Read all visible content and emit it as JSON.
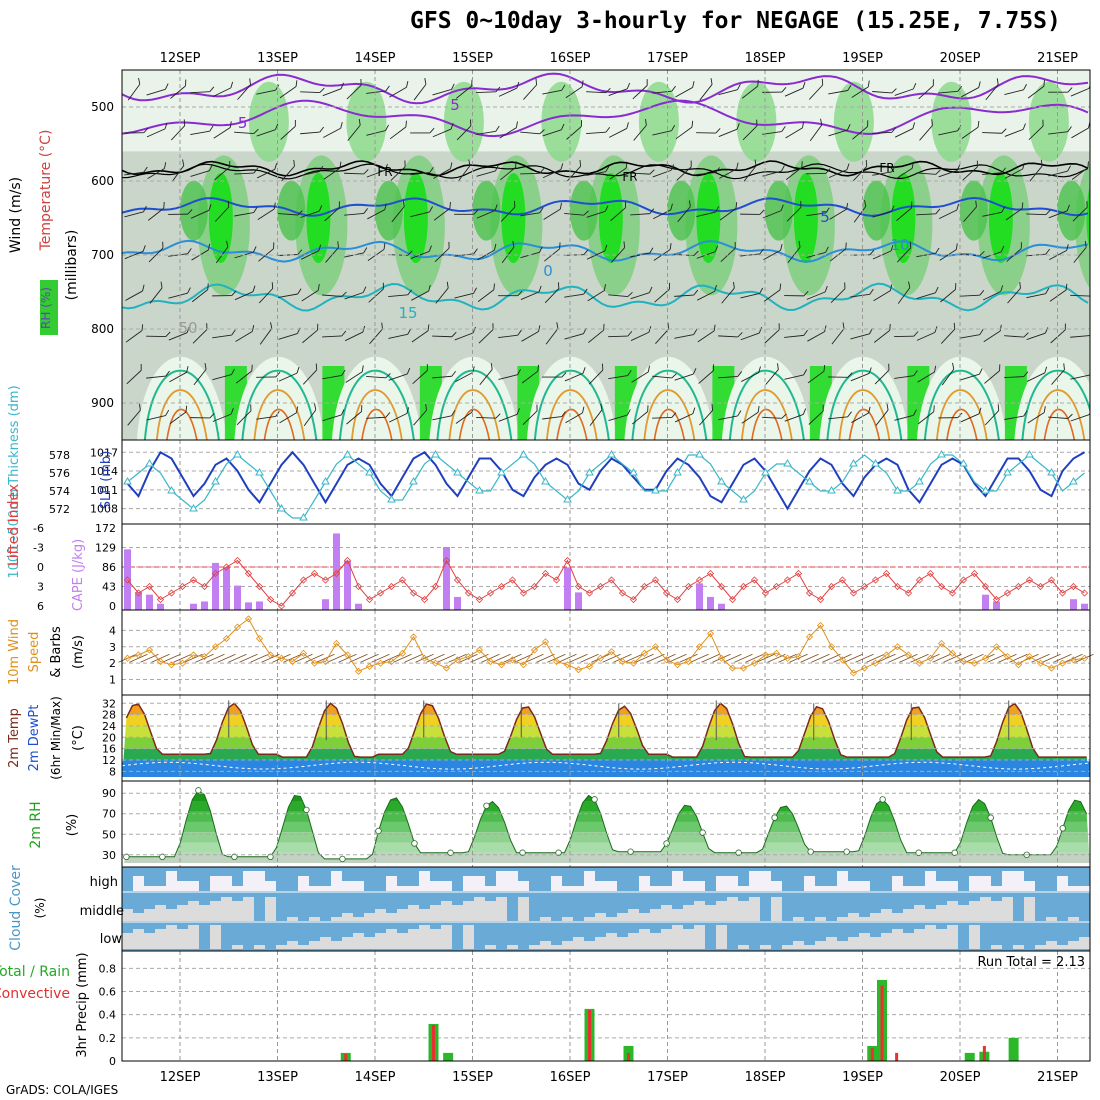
{
  "page": {
    "title": "GFS 0~10day 3-hourly for NEGAGE (15.25E, 7.75S)",
    "credit": "GrADS: COLA/IGES"
  },
  "chart_data": [
    {
      "id": "profile",
      "type": "contour",
      "title": "Wind (m/s), Temperature (°C), RH (%)",
      "ylabel": "(millibars)",
      "ylabel_parts": [
        "Wind (m/s)",
        "Temperature (°C)",
        "RH (%)"
      ],
      "yticks": [
        500,
        600,
        700,
        800,
        900
      ],
      "ylim": [
        450,
        950
      ],
      "date_labels": [
        "12SEP",
        "13SEP",
        "14SEP",
        "15SEP",
        "16SEP",
        "17SEP",
        "18SEP",
        "19SEP",
        "20SEP",
        "21SEP"
      ],
      "temp_contours": [
        {
          "label": "-5",
          "level_mb": 510,
          "color": "#8a2bd2"
        },
        {
          "label": "5",
          "level_mb": 490,
          "color": "#8a2bd2"
        },
        {
          "label": "FR",
          "level_mb": 585,
          "color": "#000000"
        },
        {
          "label": "5",
          "level_mb": 635,
          "color": "#1f4fd0"
        },
        {
          "label": "10",
          "level_mb": 695,
          "color": "#2a8ed8"
        },
        {
          "label": "0",
          "level_mb": 740,
          "color": "#2a8ed8"
        },
        {
          "label": "15",
          "level_mb": 755,
          "color": "#21b2c0"
        },
        {
          "label": "50",
          "level_mb": 800,
          "color": "#9a9a9a"
        }
      ],
      "rh_legend": "RH (%)"
    },
    {
      "id": "slp",
      "type": "line",
      "ylabel_left": "1000~500mb Thickness (dm)",
      "ylabel_right": "SLP (mb)",
      "yticks_left": [
        572,
        574,
        576,
        578
      ],
      "yticks_right": [
        1008,
        1011,
        1014,
        1017
      ],
      "series": [
        {
          "name": "SLP (mb)",
          "color": "#1f3fbf",
          "values": [
            1012,
            1010,
            1014,
            1017,
            1016,
            1013,
            1010,
            1012,
            1015,
            1016,
            1014,
            1011,
            1009,
            1012,
            1015,
            1017,
            1015,
            1012,
            1009,
            1012,
            1015,
            1016,
            1015,
            1012,
            1010,
            1013,
            1016,
            1017,
            1015,
            1012,
            1010,
            1013,
            1016,
            1016,
            1014,
            1011,
            1010,
            1013,
            1015,
            1016,
            1015,
            1012,
            1011,
            1014,
            1016,
            1015,
            1013,
            1011,
            1011,
            1014,
            1016,
            1015,
            1013,
            1010,
            1009,
            1012,
            1015,
            1016,
            1014,
            1011,
            1008,
            1011,
            1014,
            1016,
            1015,
            1012,
            1010,
            1013,
            1015,
            1016,
            1015,
            1011,
            1009,
            1012,
            1015,
            1016,
            1015,
            1012,
            1010,
            1013,
            1016,
            1016,
            1014,
            1011,
            1010,
            1014,
            1016,
            1017
          ]
        },
        {
          "name": "Thickness (dm)",
          "color": "#3ab7c8",
          "marker": "triangle",
          "values": [
            575,
            576,
            577,
            576,
            574,
            573,
            572,
            573,
            575,
            577,
            578,
            577,
            576,
            574,
            572,
            571,
            571,
            573,
            575,
            577,
            578,
            577,
            576,
            574,
            573,
            573,
            575,
            577,
            578,
            577,
            576,
            575,
            574,
            574,
            576,
            577,
            578,
            577,
            575,
            574,
            573,
            574,
            576,
            577,
            578,
            577,
            576,
            574,
            574,
            574,
            576,
            578,
            578,
            577,
            575,
            574,
            573,
            574,
            576,
            577,
            577,
            576,
            575,
            574,
            574,
            575,
            577,
            578,
            577,
            576,
            574,
            574,
            575,
            577,
            578,
            578,
            577,
            575,
            574,
            574,
            576,
            577,
            578,
            577,
            576,
            574,
            575,
            576
          ]
        }
      ]
    },
    {
      "id": "lifted",
      "type": "bar+line",
      "ylabel_left": "Lifted Index",
      "ylabel_right": "CAPE (J/kg)",
      "yticks_left": [
        6,
        3,
        0,
        -3,
        -6
      ],
      "yticks_right": [
        0,
        43,
        86,
        129,
        172
      ],
      "series": [
        {
          "name": "CAPE (J/kg)",
          "type": "bar",
          "color": "#c27ff2",
          "values": [
            125,
            30,
            25,
            5,
            0,
            0,
            5,
            10,
            95,
            85,
            45,
            8,
            10,
            0,
            0,
            0,
            0,
            0,
            15,
            160,
            100,
            5,
            0,
            0,
            0,
            0,
            0,
            0,
            0,
            130,
            20,
            0,
            0,
            0,
            0,
            0,
            0,
            0,
            0,
            0,
            85,
            30,
            0,
            0,
            0,
            0,
            0,
            0,
            0,
            0,
            0,
            0,
            50,
            20,
            5,
            0,
            0,
            0,
            0,
            0,
            0,
            0,
            0,
            0,
            0,
            0,
            0,
            0,
            0,
            0,
            0,
            0,
            0,
            0,
            0,
            0,
            0,
            0,
            25,
            10,
            0,
            0,
            0,
            0,
            0,
            0,
            15,
            5
          ]
        },
        {
          "name": "Lifted Index",
          "type": "line",
          "color": "#e04040",
          "values": [
            2,
            4,
            3,
            5,
            4,
            3,
            2,
            3,
            1,
            0,
            -1,
            1,
            3,
            5,
            6,
            4,
            2,
            1,
            2,
            1,
            -1,
            3,
            5,
            4,
            3,
            2,
            4,
            5,
            3,
            -1,
            2,
            4,
            5,
            4,
            3,
            2,
            4,
            3,
            1,
            2,
            -1,
            3,
            4,
            3,
            2,
            4,
            5,
            3,
            2,
            4,
            5,
            3,
            2,
            1,
            3,
            5,
            3,
            2,
            4,
            3,
            2,
            1,
            4,
            5,
            3,
            2,
            4,
            3,
            2,
            1,
            3,
            4,
            2,
            1,
            3,
            4,
            2,
            1,
            3,
            5,
            4,
            3,
            2,
            3,
            2,
            4,
            3,
            4
          ]
        }
      ]
    },
    {
      "id": "wind10m",
      "type": "line",
      "ylabel": "10m Wind Speed (m/s) & Barbs",
      "yticks": [
        1,
        2,
        3,
        4
      ],
      "series": [
        {
          "name": "10m Wind Speed",
          "color": "#e0901a",
          "values": [
            2.3,
            2.5,
            2.8,
            2.1,
            1.9,
            2.0,
            2.5,
            2.4,
            3.0,
            3.5,
            4.2,
            4.7,
            3.5,
            2.5,
            2.3,
            2.1,
            2.6,
            2.0,
            2.1,
            3.2,
            2.5,
            1.5,
            1.8,
            2.0,
            2.1,
            2.6,
            3.6,
            2.3,
            2.0,
            1.7,
            2.2,
            2.4,
            2.8,
            2.1,
            1.9,
            2.2,
            1.9,
            2.8,
            3.3,
            2.1,
            1.9,
            1.6,
            1.8,
            2.3,
            2.7,
            2.1,
            2.0,
            2.6,
            3.0,
            2.2,
            1.9,
            2.1,
            3.0,
            3.8,
            2.3,
            1.7,
            1.7,
            2.0,
            2.5,
            2.6,
            2.3,
            2.4,
            3.6,
            4.3,
            3.0,
            2.2,
            1.4,
            1.7,
            2.0,
            2.5,
            3.0,
            2.5,
            2.0,
            2.3,
            3.2,
            2.6,
            2.1,
            2.0,
            2.3,
            3.0,
            2.4,
            1.9,
            2.4,
            2.0,
            1.7,
            2.0,
            2.2,
            2.3
          ]
        }
      ]
    },
    {
      "id": "temp2m",
      "type": "area",
      "ylabel": "2m Temp, 2m DewPt (6hr Min/Max) (°C)",
      "yticks": [
        8,
        12,
        16,
        20,
        24,
        28,
        32
      ],
      "days_max": [
        32,
        32,
        32,
        31,
        31,
        32,
        31,
        31,
        32,
        31
      ],
      "days_min": [
        14,
        13,
        14,
        14,
        14,
        13,
        13,
        13,
        13,
        13
      ],
      "dewpoint": 10
    },
    {
      "id": "rh2m",
      "type": "area",
      "ylabel": "2m RH (%)",
      "yticks": [
        30,
        50,
        70,
        90
      ],
      "days_max": [
        93,
        89,
        86,
        82,
        88,
        79,
        78,
        84,
        84,
        84
      ],
      "days_min": [
        28,
        26,
        32,
        32,
        33,
        32,
        33,
        32,
        30,
        28
      ]
    },
    {
      "id": "cloud",
      "type": "heatmap",
      "ylabel": "Cloud Cover (%)",
      "levels": [
        "high",
        "middle",
        "low"
      ]
    },
    {
      "id": "precip",
      "type": "bar",
      "ylabel": "3hr Precip (mm)",
      "legend_total": "Total / Rain",
      "legend_conv": "Convective",
      "run_total": "Run Total = 2.13",
      "yticks": [
        0,
        0.2,
        0.4,
        0.6,
        0.8
      ],
      "ylim": [
        0,
        0.95
      ],
      "bars": [
        {
          "day": 13.7,
          "total": 0.07,
          "conv": 0.06
        },
        {
          "day": 14.6,
          "total": 0.32,
          "conv": 0.31
        },
        {
          "day": 14.75,
          "total": 0.07,
          "conv": 0.0
        },
        {
          "day": 16.2,
          "total": 0.45,
          "conv": 0.44
        },
        {
          "day": 16.6,
          "total": 0.13,
          "conv": 0.07
        },
        {
          "day": 19.1,
          "total": 0.13,
          "conv": 0.11
        },
        {
          "day": 19.2,
          "total": 0.7,
          "conv": 0.65
        },
        {
          "day": 19.35,
          "total": 0.0,
          "conv": 0.07
        },
        {
          "day": 20.1,
          "total": 0.07,
          "conv": 0.0
        },
        {
          "day": 20.25,
          "total": 0.08,
          "conv": 0.13
        },
        {
          "day": 20.55,
          "total": 0.2,
          "conv": 0.0
        }
      ]
    }
  ]
}
